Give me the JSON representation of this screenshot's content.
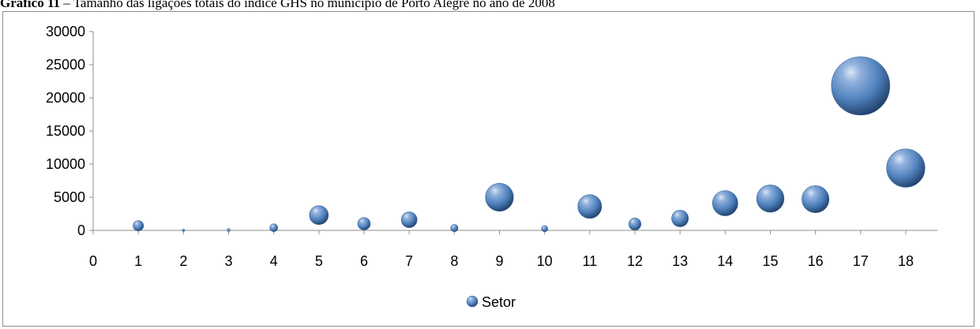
{
  "caption": {
    "label": "Gráfico 11",
    "text": " – Tamanho das ligações totais do índice GHS no município de Porto Alegre no ano de 2008"
  },
  "chart_data": {
    "type": "bubble",
    "xlim": [
      0,
      18.7
    ],
    "ylim": [
      0,
      30000
    ],
    "x_ticks": [
      0,
      1,
      2,
      3,
      4,
      5,
      6,
      7,
      8,
      9,
      10,
      11,
      12,
      13,
      14,
      15,
      16,
      17,
      18
    ],
    "y_ticks": [
      0,
      5000,
      10000,
      15000,
      20000,
      25000,
      30000
    ],
    "grid": false,
    "legend_position": "bottom",
    "bubble_color": "#4f81bd",
    "series": [
      {
        "name": "Setor",
        "points": [
          {
            "x": 1,
            "y": 700,
            "size": 700
          },
          {
            "x": 2,
            "y": 20,
            "size": 20
          },
          {
            "x": 3,
            "y": 60,
            "size": 60
          },
          {
            "x": 4,
            "y": 400,
            "size": 400
          },
          {
            "x": 5,
            "y": 2300,
            "size": 2300
          },
          {
            "x": 6,
            "y": 1000,
            "size": 1000
          },
          {
            "x": 7,
            "y": 1600,
            "size": 1600
          },
          {
            "x": 8,
            "y": 350,
            "size": 350
          },
          {
            "x": 9,
            "y": 5000,
            "size": 5000
          },
          {
            "x": 10,
            "y": 250,
            "size": 250
          },
          {
            "x": 11,
            "y": 3600,
            "size": 3600
          },
          {
            "x": 12,
            "y": 950,
            "size": 950
          },
          {
            "x": 13,
            "y": 1800,
            "size": 1800
          },
          {
            "x": 14,
            "y": 4100,
            "size": 4100
          },
          {
            "x": 15,
            "y": 4800,
            "size": 4800
          },
          {
            "x": 16,
            "y": 4700,
            "size": 4700
          },
          {
            "x": 17,
            "y": 21800,
            "size": 21800
          },
          {
            "x": 18,
            "y": 9400,
            "size": 9400
          }
        ]
      }
    ]
  }
}
